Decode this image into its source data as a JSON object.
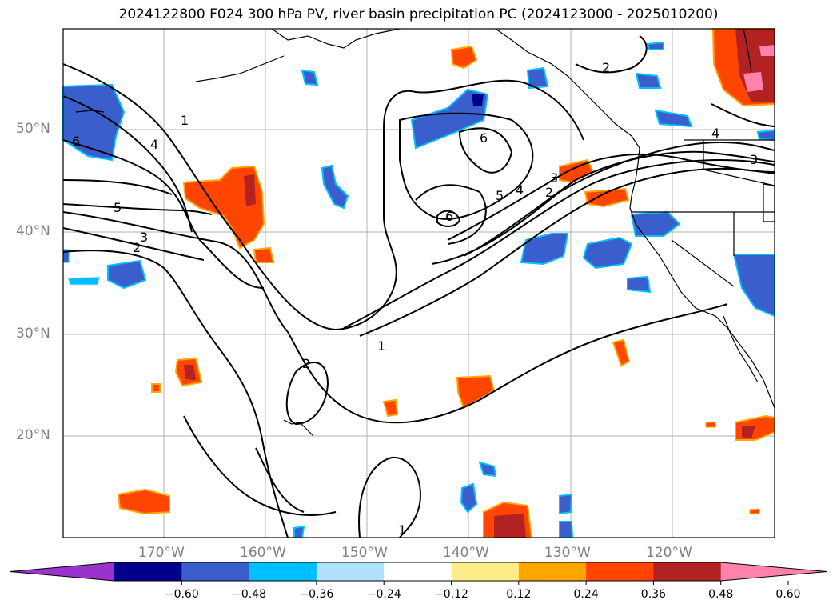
{
  "title": "2024122800 F024 300 hPa PV, river basin precipitation PC (2024123000 - 2025010200)",
  "map": {
    "lat_labels": [
      "50°N",
      "40°N",
      "30°N",
      "20°N"
    ],
    "lon_labels": [
      "170°W",
      "160°W",
      "150°W",
      "140°W",
      "130°W",
      "120°W"
    ],
    "contour_labels": [
      "1",
      "2",
      "3",
      "4",
      "5",
      "6"
    ],
    "colors": {
      "land_outline": "#000000",
      "grid": "#b0b0b0",
      "contour": "#000000"
    }
  },
  "colorbar": {
    "ticks": [
      "−0.60",
      "−0.48",
      "−0.36",
      "−0.24",
      "−0.12",
      "0.12",
      "0.24",
      "0.36",
      "0.48",
      "0.60"
    ],
    "colors": [
      "#9a32cd",
      "#00008b",
      "#3a5fcd",
      "#00bfff",
      "#b0e2ff",
      "#ffffff",
      "#ffec8b",
      "#ffa500",
      "#ff4500",
      "#b22222",
      "#ff82ab"
    ]
  }
}
